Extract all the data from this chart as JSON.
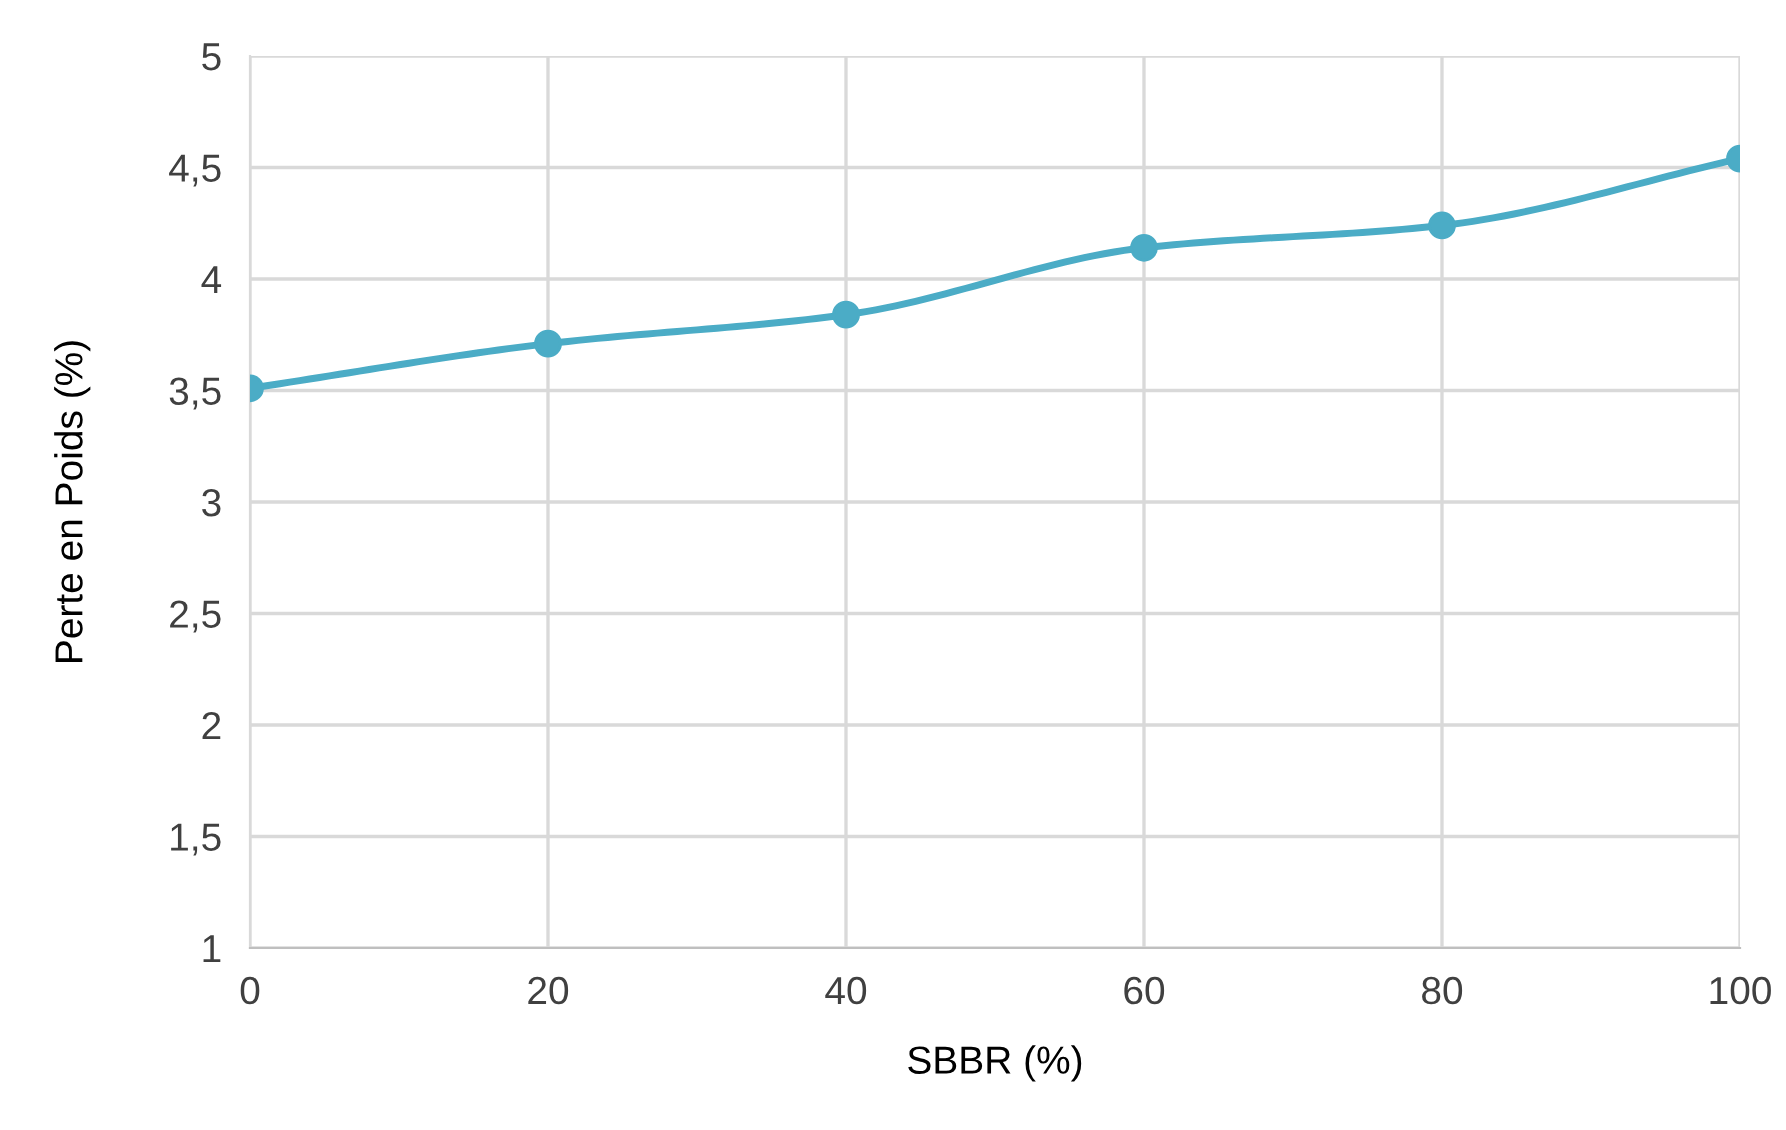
{
  "chart_data": {
    "type": "line",
    "xlabel": "SBBR (%)",
    "ylabel": "Perte en Poids (%)",
    "x": [
      0,
      20,
      40,
      60,
      80,
      100
    ],
    "series": [
      {
        "color": "#4bacc6",
        "values": [
          3.51,
          3.71,
          3.84,
          4.14,
          4.24,
          4.54
        ]
      }
    ],
    "xlim": [
      0,
      100
    ],
    "xticks": [
      0,
      20,
      40,
      60,
      80,
      100
    ],
    "ylim": [
      1,
      5
    ],
    "yticks": [
      1,
      {
        "value": 1.5,
        "label": "1,5"
      },
      2,
      {
        "value": 2.5,
        "label": "2,5"
      },
      3,
      {
        "value": 3.5,
        "label": "3,5"
      },
      4,
      {
        "value": 4.5,
        "label": "4,5"
      },
      5
    ],
    "grid": true,
    "marker": "circle",
    "line_style": "solid"
  }
}
